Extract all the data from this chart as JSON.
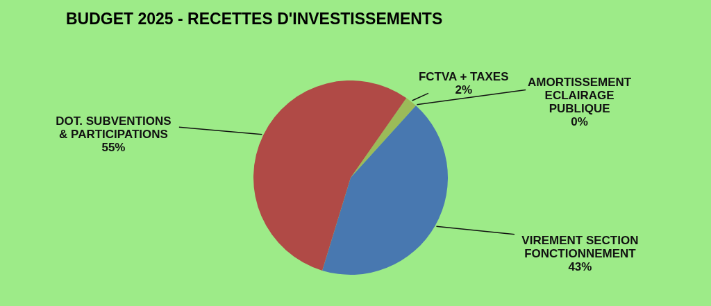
{
  "chart_data": {
    "type": "pie",
    "title": "BUDGET 2025  -   RECETTES D'INVESTISSEMENTS",
    "categories": [
      "FCTVA + TAXES",
      "AMORTISSEMENT ECLAIRAGE PUBLIQUE",
      "VIREMENT SECTION FONCTIONNEMENT",
      "DOT. SUBVENTIONS & PARTICIPATIONS"
    ],
    "values": [
      2,
      0,
      43,
      55
    ],
    "value_labels": [
      "2%",
      "0%",
      "43%",
      "55%"
    ],
    "colors": [
      "#9bbb59",
      "#7a5aa8",
      "#4878b0",
      "#b04a46"
    ]
  }
}
